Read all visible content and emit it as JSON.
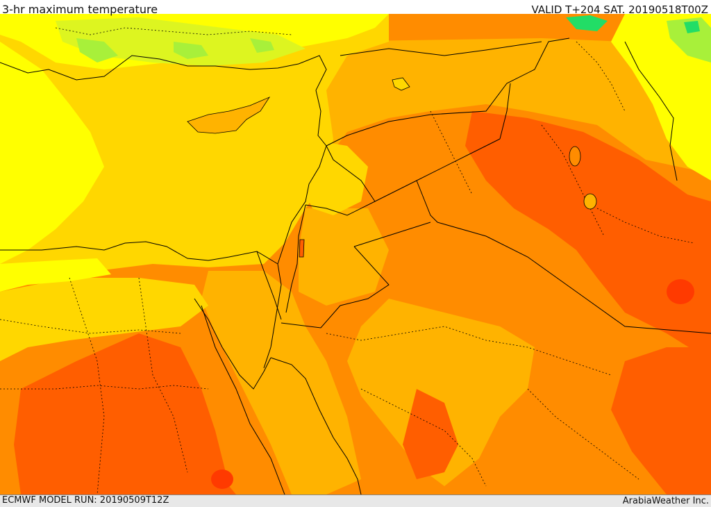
{
  "header": {
    "title": "3-hr maximum temperature",
    "valid_time": "VALID T+204 SAT. 20190518T00Z"
  },
  "footer": {
    "model_run": "ECMWF MODEL RUN: 20190509T12Z",
    "credit": "ArabiaWeather Inc."
  },
  "map": {
    "colors": {
      "green": "#22dd66",
      "light_green": "#a8f03a",
      "yellow_green": "#ddf520",
      "yellow": "#ffff00",
      "gold": "#ffd700",
      "amber": "#ffb300",
      "orange": "#ff8c00",
      "dark_orange": "#ff5e00",
      "red_orange": "#ff3a00",
      "border": "#000000"
    }
  }
}
